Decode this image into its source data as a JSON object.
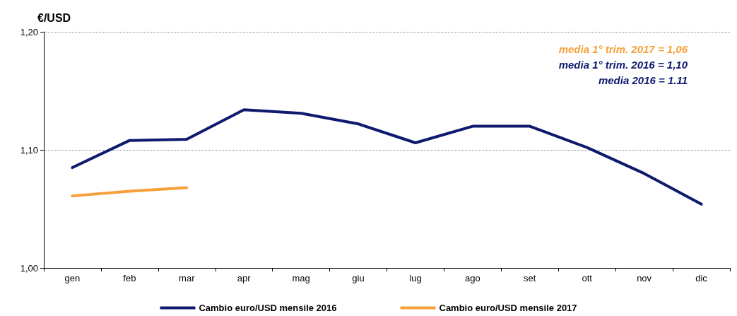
{
  "chart_data": {
    "type": "line",
    "title": "€/USD",
    "categories": [
      "gen",
      "feb",
      "mar",
      "apr",
      "mag",
      "giu",
      "lug",
      "ago",
      "set",
      "ott",
      "nov",
      "dic"
    ],
    "series": [
      {
        "name": "Cambio euro/USD mensile 2016",
        "color": "#0d1a6e",
        "values": [
          1.085,
          1.108,
          1.109,
          1.134,
          1.131,
          1.122,
          1.106,
          1.12,
          1.12,
          1.102,
          1.08,
          1.054
        ]
      },
      {
        "name": "Cambio euro/USD mensile 2017",
        "color": "#f7a03a",
        "values": [
          1.061,
          1.065,
          1.068,
          null,
          null,
          null,
          null,
          null,
          null,
          null,
          null,
          null
        ]
      }
    ],
    "ylim": [
      1.0,
      1.2
    ],
    "yticks": [
      {
        "value": 1.0,
        "label": "1,00"
      },
      {
        "value": 1.1,
        "label": "1,10"
      },
      {
        "value": 1.2,
        "label": "1,20"
      }
    ],
    "annotations": [
      "media 1° trim. 2017 = 1,06",
      "media 1° trim. 2016 = 1,10",
      "media 2016 = 1.11"
    ],
    "grid": "y",
    "legend": "bottom",
    "marker": "none",
    "line_style": "solid"
  }
}
